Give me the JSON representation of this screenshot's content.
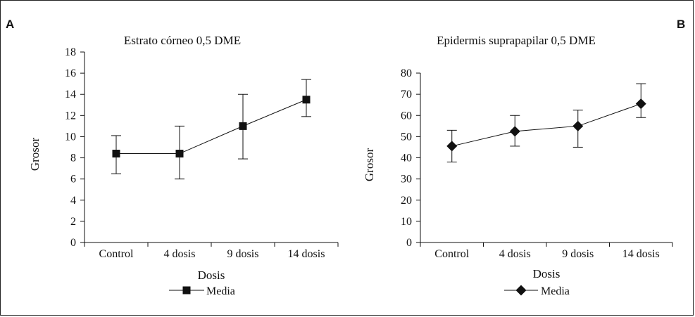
{
  "panels": {
    "left_letter": "A",
    "right_letter": "B"
  },
  "chart_data": [
    {
      "type": "line",
      "title": "Estrato córneo 0,5 DME",
      "xlabel": "Dosis",
      "ylabel": "Grosor",
      "categories": [
        "Control",
        "4 dosis",
        "9 dosis",
        "14 dosis"
      ],
      "yticks": [
        "0",
        "2",
        "4",
        "6",
        "8",
        "10",
        "12",
        "14",
        "16",
        "18"
      ],
      "ylim": [
        0,
        18
      ],
      "series": [
        {
          "name": "Media",
          "marker": "square",
          "values": [
            8.4,
            8.4,
            11.0,
            13.5
          ],
          "error_low": [
            6.5,
            6.0,
            7.9,
            11.9
          ],
          "error_high": [
            10.1,
            11.0,
            14.0,
            15.4
          ]
        }
      ],
      "legend": {
        "position": "bottom",
        "label": "Media"
      },
      "grid": false
    },
    {
      "type": "line",
      "title": "Epidermis suprapapilar 0,5 DME",
      "xlabel": "Dosis",
      "ylabel": "Grosor",
      "categories": [
        "Control",
        "4 dosis",
        "9 dosis",
        "14 dosis"
      ],
      "yticks": [
        "0",
        "10",
        "20",
        "30",
        "40",
        "50",
        "60",
        "70",
        "80"
      ],
      "ylim": [
        0,
        80
      ],
      "series": [
        {
          "name": "Media",
          "marker": "diamond",
          "values": [
            45.5,
            52.5,
            55.0,
            65.5
          ],
          "error_low": [
            38.0,
            45.5,
            45.0,
            59.0
          ],
          "error_high": [
            53.0,
            60.0,
            62.5,
            75.0
          ]
        }
      ],
      "legend": {
        "position": "bottom",
        "label": "Media"
      },
      "grid": false
    }
  ]
}
